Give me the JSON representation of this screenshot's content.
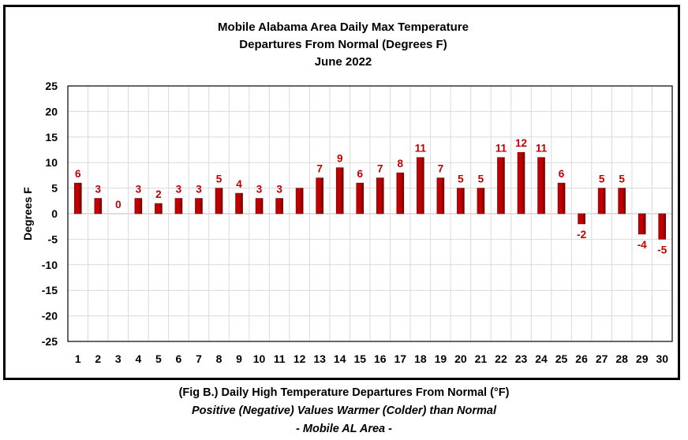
{
  "chart_data": {
    "type": "bar",
    "title_lines": [
      "Mobile Alabama Area Daily Max Temperature",
      "Departures From Normal (Degrees F)",
      "June 2022"
    ],
    "xlabel": "",
    "ylabel": "Degrees F",
    "ylim": [
      -25,
      25
    ],
    "yticks": [
      25,
      20,
      15,
      10,
      5,
      0,
      -5,
      -10,
      -15,
      -20,
      -25
    ],
    "grid": true,
    "legend": "none",
    "categories": [
      "1",
      "2",
      "3",
      "4",
      "5",
      "6",
      "7",
      "8",
      "9",
      "10",
      "11",
      "12",
      "13",
      "14",
      "15",
      "16",
      "17",
      "18",
      "19",
      "20",
      "21",
      "22",
      "23",
      "24",
      "25",
      "26",
      "27",
      "28",
      "29",
      "30"
    ],
    "values": [
      6,
      3,
      0,
      3,
      2,
      3,
      3,
      5,
      4,
      3,
      3,
      5,
      7,
      9,
      6,
      7,
      8,
      11,
      7,
      5,
      5,
      11,
      12,
      11,
      6,
      -2,
      5,
      5,
      -4,
      -5
    ],
    "data_labels": [
      "6",
      "3",
      "0",
      "3",
      "2",
      "3",
      "3",
      "5",
      "4",
      "3",
      "3",
      "",
      "7",
      "9",
      "6",
      "7",
      "8",
      "11",
      "7",
      "5",
      "5",
      "11",
      "12",
      "11",
      "6",
      "-2",
      "5",
      "5",
      "-4",
      "-5"
    ],
    "colors": {
      "bar": "#c00000",
      "bar_dark": "#6e0000",
      "label": "#c00000",
      "grid": "#d9d9d9"
    }
  },
  "captions": {
    "line1": "(Fig B.) Daily High Temperature Departures From Normal (°F)",
    "line2": "Positive (Negative) Values Warmer (Colder) than Normal",
    "line3": "- Mobile AL Area -"
  }
}
